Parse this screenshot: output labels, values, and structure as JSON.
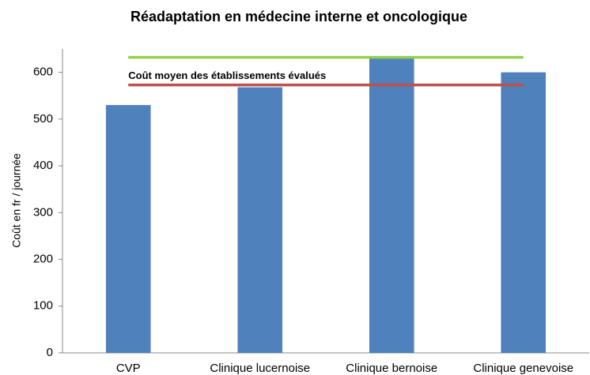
{
  "chart_data": {
    "type": "bar",
    "title": "Réadaptation en médecine interne et oncologique",
    "y_label": "Coût en fr / journée",
    "categories": [
      "CVP",
      "Clinique lucernoise",
      "Clinique bernoise",
      "Clinique genevoise"
    ],
    "values": [
      530,
      568,
      632,
      600
    ],
    "color": "#4f81bd",
    "ylim": [
      0,
      650
    ],
    "yticks": [
      0,
      100,
      200,
      300,
      400,
      500,
      600
    ],
    "grid": false,
    "reference_lines": [
      {
        "value": 632,
        "color": "#92d050"
      },
      {
        "name": "Coût moyen des établissements évalués",
        "value": 573,
        "color": "#c0504d"
      }
    ]
  }
}
